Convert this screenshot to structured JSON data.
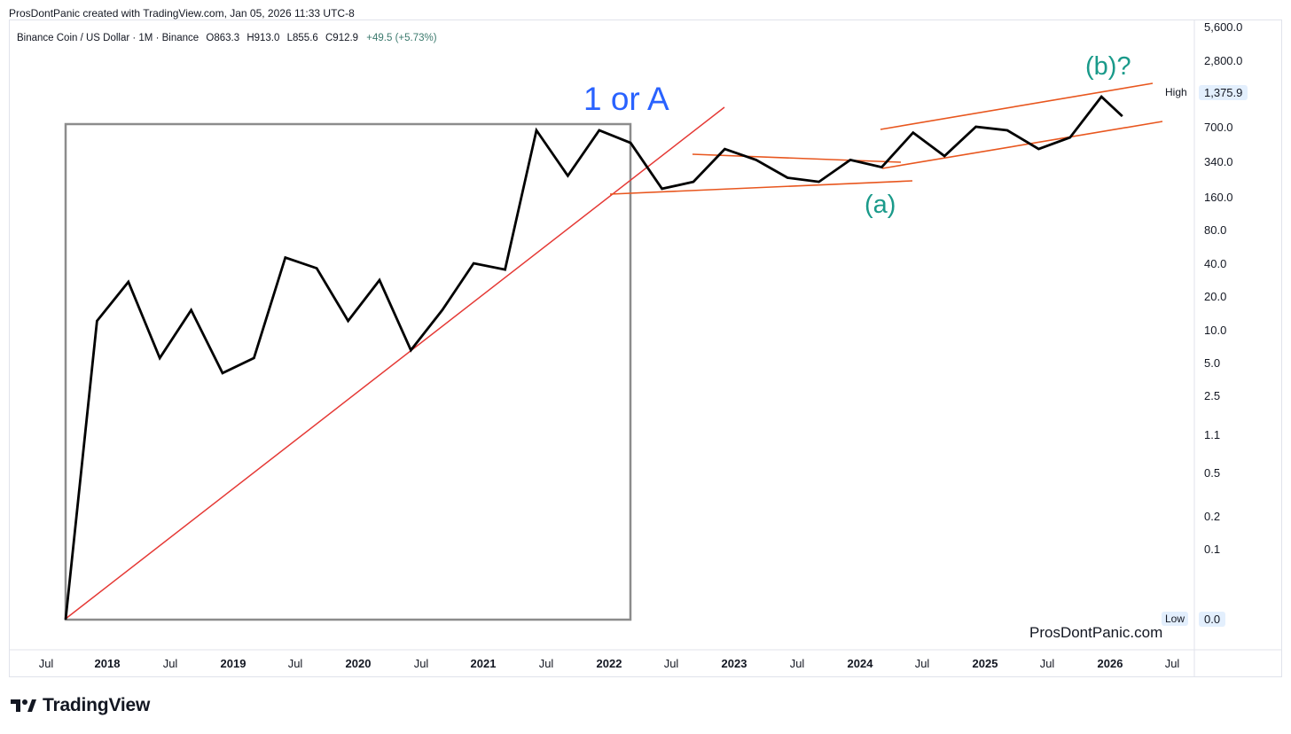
{
  "header": {
    "created_by": "ProsDontPanic created with TradingView.com, Jan 05, 2026 11:33 UTC-8"
  },
  "legend": {
    "symbol": "Binance Coin / US Dollar · 1M · Binance",
    "open": "O863.3",
    "high": "H913.0",
    "low": "L855.6",
    "close": "C912.9",
    "change": "+49.5 (+5.73%)"
  },
  "price_tags": {
    "high_label": "High",
    "high_value": "1,375.9",
    "low_label": "Low",
    "low_value": "0.0"
  },
  "watermark": "ProsDontPanic.com",
  "brand": {
    "name": "TradingView",
    "icon": "tradingview-logo-icon"
  },
  "colors": {
    "price_line": "#000000",
    "trendline_red": "#e53935",
    "channel_lines": "#e8561e",
    "label_blue": "#2962ff",
    "label_teal": "#1a9a8a",
    "box_gray": "#8c8c8c"
  },
  "chart_data": {
    "type": "line",
    "title": "Binance Coin / US Dollar · 1M · Binance",
    "y_scale": "log",
    "x": [
      "2017-07",
      "2017-10",
      "2018-01",
      "2018-04",
      "2018-07",
      "2018-10",
      "2019-01",
      "2019-04",
      "2019-07",
      "2019-10",
      "2020-01",
      "2020-04",
      "2020-07",
      "2020-10",
      "2021-01",
      "2021-04",
      "2021-07",
      "2021-10",
      "2022-01",
      "2022-04",
      "2022-07",
      "2022-10",
      "2023-01",
      "2023-04",
      "2023-07",
      "2023-10",
      "2024-01",
      "2024-04",
      "2024-07",
      "2024-10",
      "2025-01",
      "2025-04",
      "2025-07",
      "2025-10",
      "2025-12"
    ],
    "series": [
      {
        "values": [
          0.0,
          12,
          27,
          5.5,
          15,
          4,
          5.5,
          45,
          36,
          12,
          28,
          6.5,
          15,
          40,
          35,
          650,
          250,
          650,
          500,
          190,
          220,
          440,
          350,
          240,
          220,
          350,
          300,
          620,
          380,
          700,
          650,
          440,
          560,
          1300,
          870
        ]
      }
    ],
    "x_tick_labels": [
      "Jul",
      "2018",
      "Jul",
      "2019",
      "Jul",
      "2020",
      "Jul",
      "2021",
      "Jul",
      "2022",
      "Jul",
      "2023",
      "Jul",
      "2024",
      "Jul",
      "2025",
      "Jul",
      "2026",
      "Jul"
    ],
    "y_tick_labels": [
      "5,600.0",
      "2,800.0",
      "1,375.9",
      "700.0",
      "340.0",
      "160.0",
      "80.0",
      "40.0",
      "20.0",
      "10.0",
      "5.0",
      "2.5",
      "1.1",
      "0.5",
      "0.2",
      "0.1",
      "0.0"
    ],
    "y_ticks": [
      5600,
      2800,
      1375.9,
      700,
      340,
      160,
      80,
      40,
      20,
      10,
      5,
      2.5,
      1.1,
      0.5,
      0.2,
      0.1,
      0.0
    ],
    "annotations": [
      "1 or A",
      "(a)",
      "(b)?"
    ],
    "grid": false
  }
}
